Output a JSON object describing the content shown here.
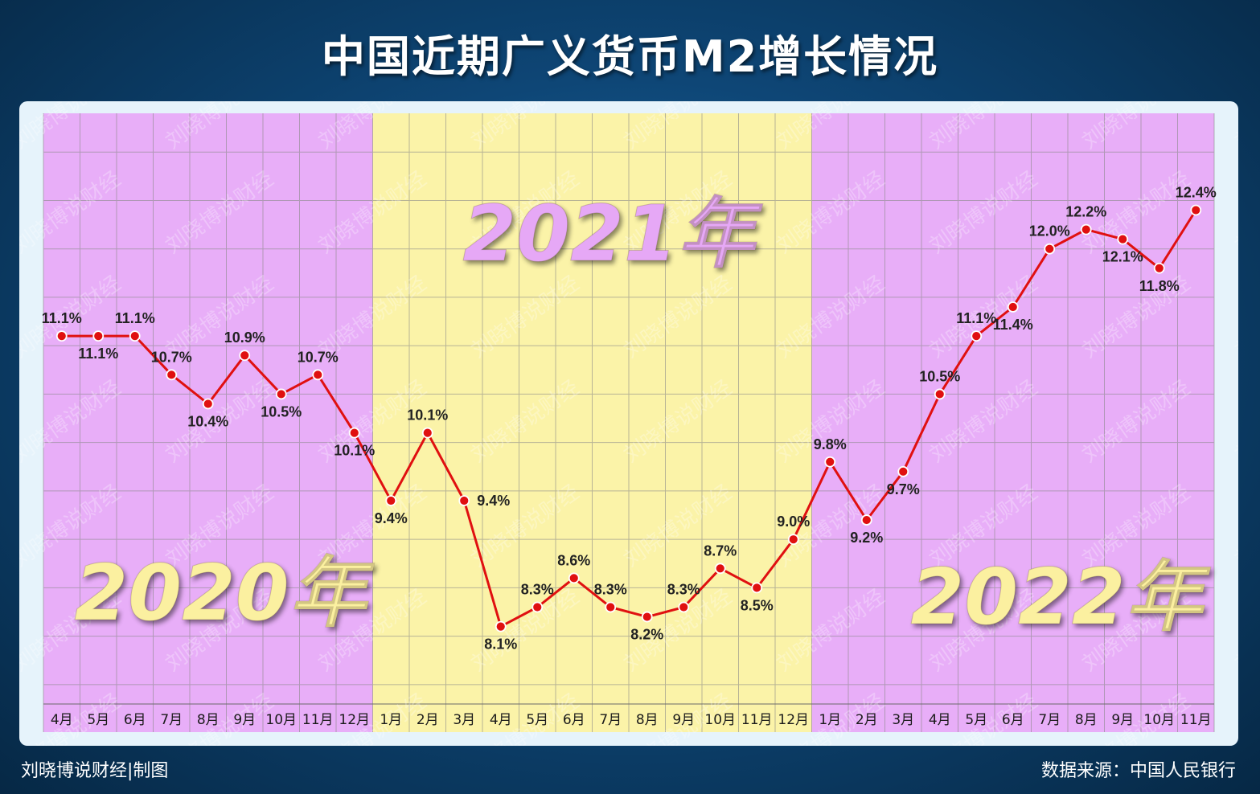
{
  "title": "中国近期广义货币M2增长情况",
  "footer": {
    "credit": "刘晓博说财经|制图",
    "source": "数据来源：中国人民银行"
  },
  "watermark": "刘晓博说财经",
  "colors": {
    "band_2020_2022": "#e8aef8",
    "band_2021": "#fbf3a8",
    "line": "#e01010",
    "year_2021_text": "#e6a8f6",
    "year_2020_2022_text": "#fbf0a0"
  },
  "chart_data": {
    "type": "line",
    "categories": [
      "4月",
      "5月",
      "6月",
      "7月",
      "8月",
      "9月",
      "10月",
      "11月",
      "12月",
      "1月",
      "2月",
      "3月",
      "4月",
      "5月",
      "6月",
      "7月",
      "8月",
      "9月",
      "10月",
      "11月",
      "12月",
      "1月",
      "2月",
      "3月",
      "4月",
      "5月",
      "6月",
      "7月",
      "8月",
      "9月",
      "10月",
      "11月"
    ],
    "values": [
      11.1,
      11.1,
      11.1,
      10.7,
      10.4,
      10.9,
      10.5,
      10.7,
      10.1,
      9.4,
      10.1,
      9.4,
      8.1,
      8.3,
      8.6,
      8.3,
      8.2,
      8.3,
      8.7,
      8.5,
      9.0,
      9.8,
      9.2,
      9.7,
      10.5,
      11.1,
      11.4,
      12.0,
      12.2,
      12.1,
      11.8,
      12.4
    ],
    "labels": [
      "11.1%",
      "11.1%",
      "11.1%",
      "10.7%",
      "10.4%",
      "10.9%",
      "10.5%",
      "10.7%",
      "10.1%",
      "9.4%",
      "10.1%",
      "9.4%",
      "8.1%",
      "8.3%",
      "8.6%",
      "8.3%",
      "8.2%",
      "8.3%",
      "8.7%",
      "8.5%",
      "9.0%",
      "9.8%",
      "9.2%",
      "9.7%",
      "10.5%",
      "11.1%",
      "11.4%",
      "12.0%",
      "12.2%",
      "12.1%",
      "11.8%",
      "12.4%"
    ],
    "label_pos": [
      "above",
      "below",
      "above",
      "above",
      "below",
      "above",
      "below",
      "above",
      "below",
      "below",
      "above",
      "right",
      "below",
      "above",
      "above",
      "above",
      "below",
      "above",
      "above",
      "below",
      "above",
      "above",
      "below",
      "below",
      "above",
      "above",
      "below",
      "above",
      "above",
      "below",
      "below",
      "above"
    ],
    "years": [
      {
        "label": "2020年",
        "start": 0,
        "end": 8
      },
      {
        "label": "2021年",
        "start": 9,
        "end": 20
      },
      {
        "label": "2022年",
        "start": 21,
        "end": 31
      }
    ],
    "ylim": [
      7.3,
      13.4
    ],
    "grid": true
  }
}
